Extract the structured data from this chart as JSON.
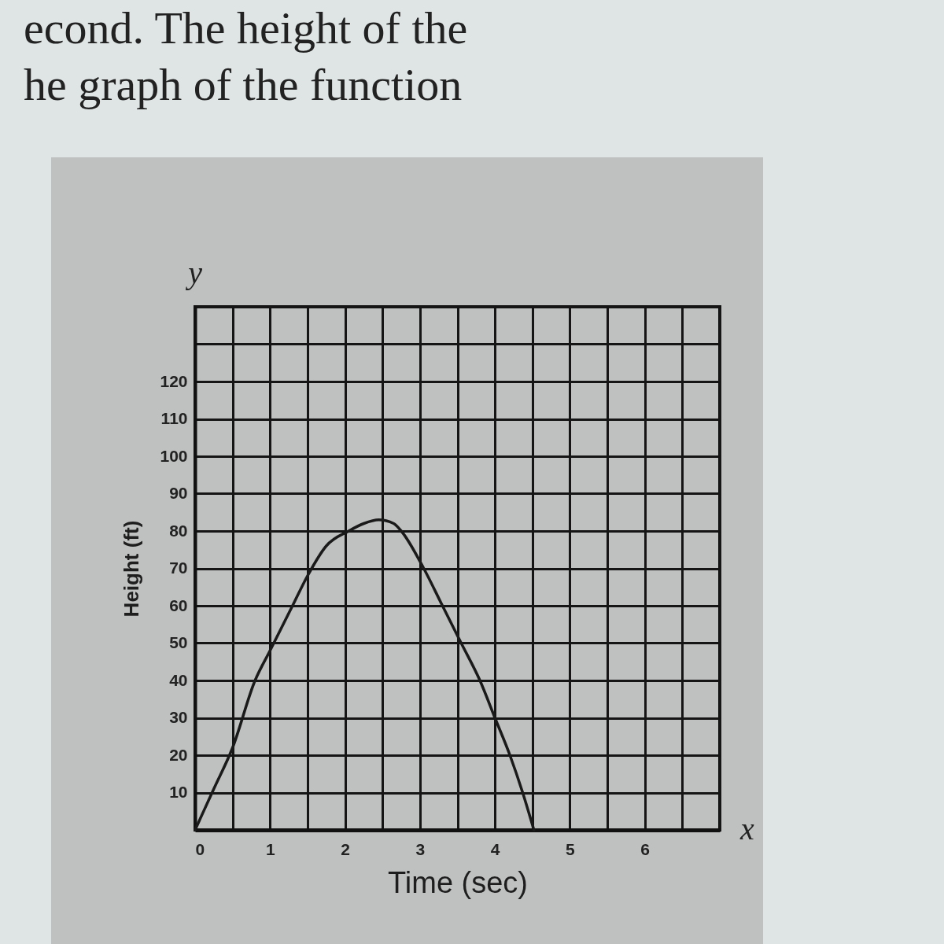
{
  "chart_data": {
    "type": "line",
    "title": "econd. The height of the",
    "subtitle": "he graph of the function",
    "xlabel": "Time (sec)",
    "ylabel": "Height (ft)",
    "annotations": [
      "y",
      "x"
    ],
    "series": [
      {
        "color": "#1a1a1a",
        "x": [
          0,
          0.25,
          0.5,
          0.8,
          1.0,
          1.3,
          1.5,
          1.75,
          2.05,
          2.25,
          2.45,
          2.65,
          2.75,
          3.05,
          3.3,
          3.55,
          3.8,
          4.0,
          4.2,
          4.37,
          4.52
        ],
        "values": [
          0,
          11,
          22,
          40,
          48,
          60,
          68,
          76,
          80,
          82,
          83,
          82,
          80,
          70,
          60,
          50,
          40,
          30,
          20,
          10,
          0
        ]
      }
    ],
    "xlim": [
      0,
      7
    ],
    "ylim": [
      0,
      140
    ],
    "xticks": [
      0,
      {
        "value": 0.5,
        "label": null
      },
      1,
      {
        "value": 1.5,
        "label": null
      },
      2,
      {
        "value": 2.5,
        "label": null
      },
      3,
      {
        "value": 3.5,
        "label": null
      },
      4,
      {
        "value": 4.5,
        "label": null
      },
      5,
      {
        "value": 5.5,
        "label": null
      },
      6,
      {
        "value": 6.5,
        "label": null
      },
      {
        "value": 7,
        "label": null
      }
    ],
    "yticks": [
      {
        "value": 0,
        "label": null
      },
      10,
      20,
      30,
      40,
      50,
      60,
      70,
      80,
      90,
      100,
      110,
      120,
      {
        "value": 130,
        "label": null
      },
      {
        "value": 140,
        "label": null
      }
    ],
    "grid": true
  }
}
